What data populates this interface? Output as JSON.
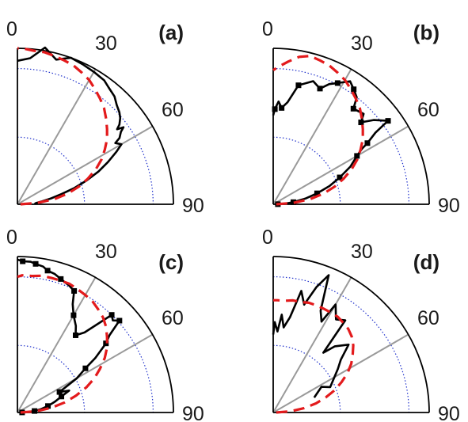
{
  "chart_data": [
    {
      "type": "line",
      "coordinate_system": "polar-quadrant",
      "panel_label": "(a)",
      "angle_ticks": [
        "0",
        "30",
        "60",
        "90"
      ],
      "rlim": [
        0,
        1
      ],
      "grid_circles": [
        0.43,
        0.87
      ],
      "series": [
        {
          "style": "measured",
          "color": "#000000",
          "theta": [
            89,
            86,
            83,
            80,
            77,
            74,
            71,
            68,
            65,
            62,
            60,
            58,
            57,
            55,
            54,
            53,
            52,
            50,
            48,
            45,
            42,
            38,
            35,
            30,
            25,
            20,
            15,
            10,
            5,
            0
          ],
          "r": [
            0.11,
            0.12,
            0.16,
            0.22,
            0.29,
            0.38,
            0.47,
            0.56,
            0.64,
            0.72,
            0.77,
            0.74,
            0.78,
            0.81,
            0.84,
            0.8,
            0.83,
            0.86,
            0.88,
            0.9,
            0.93,
            0.95,
            0.97,
            0.98,
            0.99,
            1.0,
            0.96,
            1.02,
            0.94,
            0.92
          ]
        },
        {
          "style": "fit",
          "color": "#e31a1c",
          "theta": [
            90,
            86,
            82,
            78,
            74,
            70,
            66,
            62,
            58,
            54,
            50,
            46,
            42,
            38,
            34,
            30,
            26,
            22,
            18,
            14,
            10,
            6,
            2,
            0
          ],
          "r": [
            0.02,
            0.13,
            0.24,
            0.33,
            0.41,
            0.48,
            0.55,
            0.61,
            0.66,
            0.71,
            0.75,
            0.79,
            0.83,
            0.86,
            0.89,
            0.92,
            0.94,
            0.96,
            0.97,
            0.98,
            0.99,
            0.99,
            1.0,
            1.0
          ]
        }
      ]
    },
    {
      "type": "line",
      "coordinate_system": "polar-quadrant",
      "panel_label": "(b)",
      "angle_ticks": [
        "0",
        "30",
        "60",
        "90"
      ],
      "rlim": [
        0,
        1
      ],
      "grid_circles": [
        0.43,
        0.87
      ],
      "series": [
        {
          "style": "measured",
          "color": "#000000",
          "markers": true,
          "theta": [
            89,
            87,
            84,
            80,
            76,
            72,
            68,
            64,
            60,
            58,
            57,
            55,
            54,
            50,
            47,
            45,
            40,
            38,
            35,
            32,
            28,
            25,
            22,
            18,
            12,
            8,
            5,
            3,
            1,
            0
          ],
          "r": [
            0.03,
            0.08,
            0.13,
            0.21,
            0.29,
            0.38,
            0.46,
            0.55,
            0.62,
            0.67,
            0.72,
            0.8,
            0.91,
            0.84,
            0.77,
            0.82,
            0.8,
            0.87,
            0.9,
            0.93,
            0.88,
            0.85,
            0.8,
            0.83,
            0.78,
            0.66,
            0.62,
            0.66,
            0.61,
            0.57
          ]
        },
        {
          "style": "fit",
          "color": "#e31a1c",
          "theta": [
            90,
            86,
            82,
            78,
            74,
            70,
            66,
            62,
            58,
            54,
            50,
            46,
            42,
            38,
            34,
            30,
            26,
            22,
            18,
            14,
            10,
            6,
            2,
            0
          ],
          "r": [
            0.02,
            0.13,
            0.24,
            0.33,
            0.41,
            0.48,
            0.55,
            0.61,
            0.66,
            0.71,
            0.75,
            0.79,
            0.83,
            0.86,
            0.89,
            0.92,
            0.94,
            0.96,
            0.97,
            0.98,
            0.96,
            0.92,
            0.88,
            0.86
          ]
        }
      ]
    },
    {
      "type": "line",
      "coordinate_system": "polar-quadrant",
      "panel_label": "(c)",
      "angle_ticks": [
        "0",
        "30",
        "60",
        "90"
      ],
      "rlim": [
        0,
        1
      ],
      "grid_circles": [
        0.43,
        0.87
      ],
      "series": [
        {
          "style": "measured",
          "color": "#000000",
          "markers": true,
          "theta": [
            89,
            87,
            85,
            82,
            78,
            74,
            70,
            67,
            64,
            60,
            57,
            55,
            52,
            50,
            48,
            46,
            44,
            40,
            37,
            34,
            30,
            27,
            25,
            22,
            18,
            15,
            12,
            10,
            7,
            5,
            2,
            0
          ],
          "r": [
            0.03,
            0.07,
            0.11,
            0.15,
            0.2,
            0.25,
            0.3,
            0.36,
            0.3,
            0.44,
            0.52,
            0.61,
            0.72,
            0.77,
            0.88,
            0.85,
            0.87,
            0.67,
            0.62,
            0.67,
            0.72,
            0.78,
            0.86,
            0.88,
            0.9,
            0.92,
            0.93,
            0.95,
            0.96,
            0.97,
            0.97,
            0.98
          ]
        },
        {
          "style": "fit",
          "color": "#e31a1c",
          "theta": [
            90,
            86,
            82,
            78,
            74,
            70,
            66,
            62,
            58,
            54,
            50,
            46,
            42,
            38,
            34,
            30,
            26,
            22,
            18,
            14,
            10,
            6,
            2,
            0
          ],
          "r": [
            0.02,
            0.12,
            0.22,
            0.31,
            0.39,
            0.47,
            0.54,
            0.6,
            0.66,
            0.71,
            0.75,
            0.79,
            0.82,
            0.84,
            0.86,
            0.87,
            0.88,
            0.89,
            0.89,
            0.89,
            0.89,
            0.88,
            0.88,
            0.87
          ]
        }
      ]
    },
    {
      "type": "line",
      "coordinate_system": "polar-quadrant",
      "panel_label": "(d)",
      "angle_ticks": [
        "0",
        "30",
        "60",
        "90"
      ],
      "rlim": [
        0,
        1
      ],
      "grid_circles": [
        0.43,
        0.87
      ],
      "series": [
        {
          "style": "measured",
          "color": "#000000",
          "theta": [
            70,
            62,
            66,
            56,
            52,
            48,
            46,
            43,
            40,
            38,
            34,
            30,
            28,
            25,
            22,
            19,
            16,
            13,
            10,
            7,
            5,
            3,
            1,
            0
          ],
          "r": [
            0.28,
            0.35,
            0.4,
            0.5,
            0.55,
            0.65,
            0.62,
            0.58,
            0.5,
            0.75,
            0.72,
            0.8,
            0.66,
            0.72,
            0.95,
            0.85,
            0.72,
            0.8,
            0.62,
            0.55,
            0.63,
            0.52,
            0.58,
            0.5
          ]
        },
        {
          "style": "fit",
          "color": "#e31a1c",
          "theta": [
            90,
            86,
            82,
            78,
            74,
            70,
            66,
            62,
            58,
            54,
            50,
            46,
            42,
            38,
            34,
            30,
            26,
            22,
            18,
            14,
            10,
            6,
            2,
            0
          ],
          "r": [
            0.02,
            0.11,
            0.2,
            0.28,
            0.35,
            0.42,
            0.48,
            0.54,
            0.59,
            0.63,
            0.67,
            0.7,
            0.72,
            0.73,
            0.74,
            0.74,
            0.74,
            0.74,
            0.74,
            0.73,
            0.73,
            0.72,
            0.72,
            0.72
          ]
        }
      ]
    }
  ]
}
